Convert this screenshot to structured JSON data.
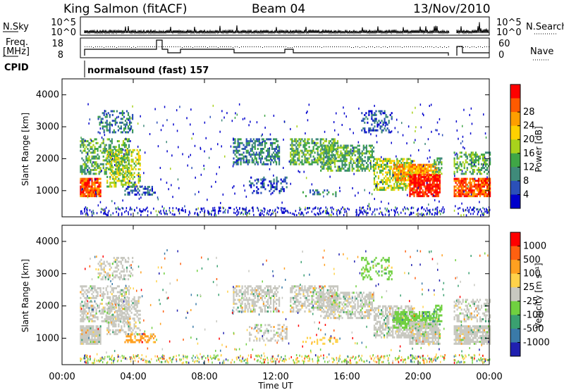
{
  "header": {
    "station": "King Salmon (fitACF)",
    "beam": "Beam 04",
    "date": "13/Nov/2010"
  },
  "top_panels": {
    "nsky_label": "N.Sky",
    "nsearch_label": "N.Search",
    "nsky_ticks": [
      "10^5",
      "10^0"
    ],
    "nsearch_ticks": [
      "10^5",
      "10^0"
    ],
    "freq_label_line1": "Freq.",
    "freq_label_line2": "[MHz]",
    "freq_ticks": [
      "18",
      "8"
    ],
    "nave_label": "Nave",
    "nave_ticks": [
      "60",
      "0"
    ],
    "cpid_label": "CPID",
    "cpid_text": "normalsound (fast) 157"
  },
  "chart_data": [
    {
      "type": "heatmap",
      "name": "power",
      "ylabel": "Slant Range [km]",
      "ylim": [
        180,
        4500
      ],
      "yticks": [
        "1000",
        "2000",
        "3000",
        "4000"
      ],
      "xlim": [
        "00:00",
        "24:00"
      ],
      "colorbar_label": "Power [dB]",
      "colorbar_ticks": [
        "4",
        "8",
        "12",
        "16",
        "20",
        "24",
        "28"
      ],
      "colors": [
        "#0000cc",
        "#2b50b8",
        "#3f8a7a",
        "#3fa646",
        "#a8d21c",
        "#ffd100",
        "#ff9f00",
        "#ff5a00",
        "#ff0000"
      ]
    },
    {
      "type": "heatmap",
      "name": "velocity",
      "ylabel": "Slant Range [km]",
      "ylim": [
        180,
        4500
      ],
      "yticks": [
        "1000",
        "2000",
        "3000",
        "4000"
      ],
      "xlim": [
        "00:00",
        "24:00"
      ],
      "xlabel": "Time UT",
      "xticks": [
        "00:00",
        "04:00",
        "08:00",
        "12:00",
        "16:00",
        "20:00",
        "00:00"
      ],
      "colorbar_label": "Velocity [m s⁻¹]",
      "colorbar_ticks": [
        "1000",
        "500",
        "100",
        "25",
        "-25",
        "-100",
        "-500",
        "-1000"
      ],
      "colors": [
        "#2020b0",
        "#3a7aa8",
        "#3aa070",
        "#70d040",
        "#c8c8c0",
        "#ffd24a",
        "#ffa020",
        "#ff6010",
        "#ff0000"
      ]
    }
  ]
}
